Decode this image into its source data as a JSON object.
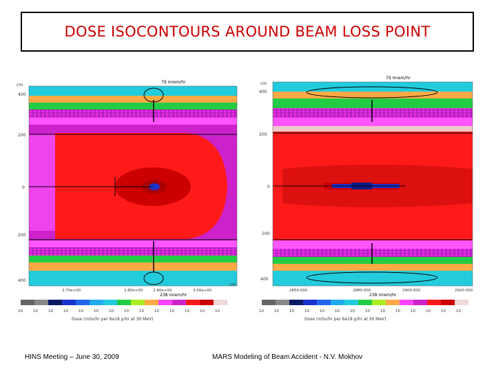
{
  "title": "DOSE ISOCONTOURS AROUND BEAM LOSS POINT",
  "footer": {
    "left": "HINS Meeting – June 30, 2009",
    "center": "MARS Modeling of Beam Accident -  N.V. Mokhov"
  },
  "colors": {
    "title": "#cc0000",
    "hot": "#ff1a1a",
    "core": "#cc0000",
    "magenta": "#cc22cc",
    "pink": "#ff44ff",
    "green": "#22cc44",
    "cyan": "#22ccdd",
    "beam": "#1a33cc"
  },
  "panels": [
    {
      "unit": "cm",
      "y_ticks": [
        "400",
        "200",
        "0",
        "200",
        "400"
      ],
      "top_label": "79 mrem/hr",
      "bottom_label": "238 mrem/hr",
      "x_ticks": [
        "2.70e+00",
        "2.80e+00",
        "2.90e+00",
        "3.00e+00"
      ],
      "scale_labels": [
        "10",
        "10",
        "10",
        "10",
        "10",
        "10",
        "10",
        "10",
        "10",
        "10",
        "10",
        "10",
        "10",
        "10"
      ],
      "scale_caption": "Dose (mSv/hr per 6e18 p/hr at 30 MeV)"
    },
    {
      "unit": "cm",
      "y_ticks": [
        "400",
        "200",
        "0",
        "200",
        "400"
      ],
      "top_label": "79 mrem/hr",
      "bottom_label": "238 mrem/hr",
      "x_ticks": [
        "2850.000",
        "2880.000",
        "2900.000",
        "2920.000"
      ],
      "scale_labels": [
        "10",
        "10",
        "10",
        "10",
        "10",
        "10",
        "10",
        "10",
        "10",
        "10",
        "10",
        "10",
        "10",
        "10"
      ],
      "scale_caption": "Dose (mSv/hr per 6e18 p/hr at 30 MeV)"
    }
  ]
}
